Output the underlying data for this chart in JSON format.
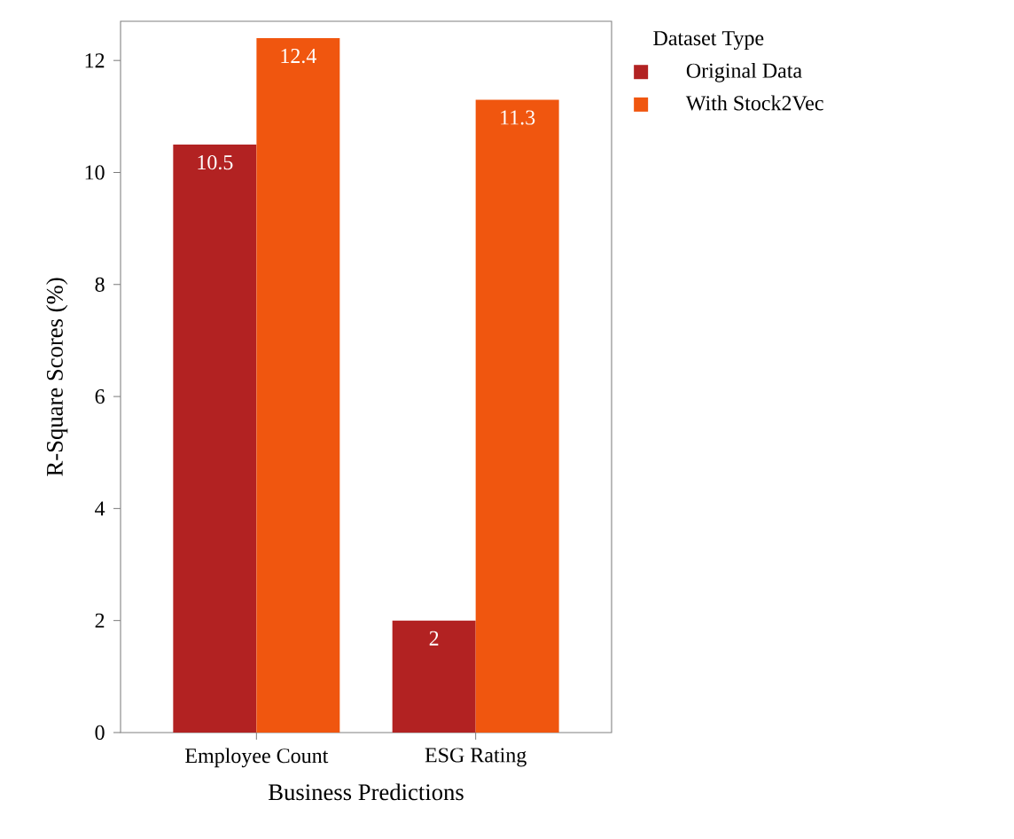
{
  "chart_data": {
    "type": "bar",
    "xlabel": "Business Predictions",
    "ylabel": "R-Square Scores (%)",
    "legend_title": "Dataset Type",
    "categories": [
      "Employee Count",
      "ESG Rating"
    ],
    "series": [
      {
        "name": "Original Data",
        "color": "#b22222",
        "values": [
          10.5,
          2
        ]
      },
      {
        "name": "With Stock2Vec",
        "color": "#f0560f",
        "values": [
          12.4,
          11.3
        ]
      }
    ],
    "ylim": [
      0,
      12.7
    ],
    "yticks": [
      0,
      2,
      4,
      6,
      8,
      10,
      12
    ],
    "data_labels": true,
    "legend": "right",
    "grid": false
  }
}
